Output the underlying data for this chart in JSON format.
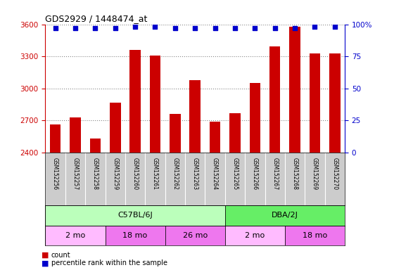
{
  "title": "GDS2929 / 1448474_at",
  "samples": [
    "GSM152256",
    "GSM152257",
    "GSM152258",
    "GSM152259",
    "GSM152260",
    "GSM152261",
    "GSM152262",
    "GSM152263",
    "GSM152264",
    "GSM152265",
    "GSM152266",
    "GSM152267",
    "GSM152268",
    "GSM152269",
    "GSM152270"
  ],
  "counts": [
    2660,
    2730,
    2530,
    2870,
    3360,
    3310,
    2760,
    3080,
    2690,
    2770,
    3050,
    3390,
    3580,
    3330,
    3330
  ],
  "percentiles": [
    97,
    97,
    97,
    97,
    98,
    98,
    97,
    97,
    97,
    97,
    97,
    97,
    97,
    98,
    98
  ],
  "ylim_left": [
    2400,
    3600
  ],
  "ylim_right": [
    0,
    100
  ],
  "yticks_left": [
    2400,
    2700,
    3000,
    3300,
    3600
  ],
  "yticks_right": [
    0,
    25,
    50,
    75,
    100
  ],
  "bar_color": "#cc0000",
  "dot_color": "#0000cc",
  "strain_labels": [
    {
      "label": "C57BL/6J",
      "start": 0,
      "end": 9,
      "color": "#bbffbb"
    },
    {
      "label": "DBA/2J",
      "start": 9,
      "end": 15,
      "color": "#66ee66"
    }
  ],
  "age_labels": [
    {
      "label": "2 mo",
      "start": 0,
      "end": 3,
      "color": "#ffbbff"
    },
    {
      "label": "18 mo",
      "start": 3,
      "end": 6,
      "color": "#ee77ee"
    },
    {
      "label": "26 mo",
      "start": 6,
      "end": 9,
      "color": "#ee77ee"
    },
    {
      "label": "2 mo",
      "start": 9,
      "end": 12,
      "color": "#ffbbff"
    },
    {
      "label": "18 mo",
      "start": 12,
      "end": 15,
      "color": "#ee77ee"
    }
  ],
  "grid_color": "#888888",
  "sample_bg": "#cccccc",
  "plot_bg": "#ffffff"
}
